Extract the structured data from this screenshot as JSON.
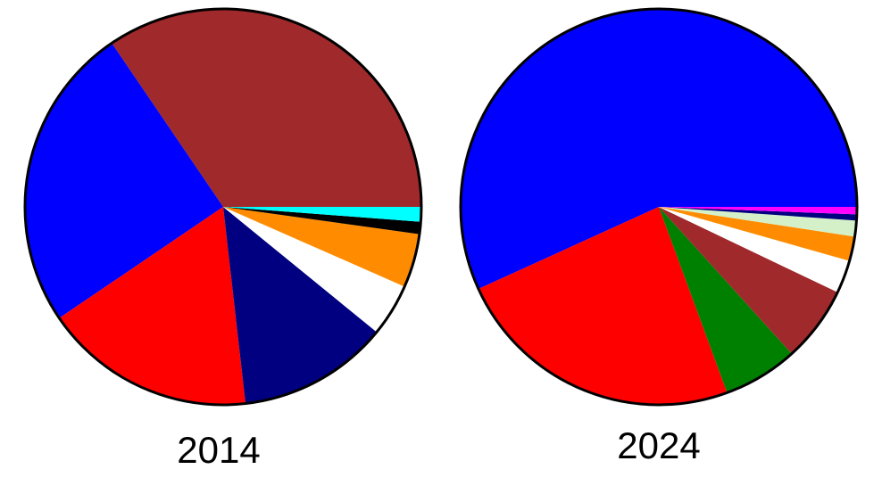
{
  "chart_data": [
    {
      "type": "pie",
      "title": "2014",
      "values": [
        34.5,
        25,
        17.3,
        12.3,
        4.3,
        4.4,
        1,
        1.2
      ],
      "colors": [
        "#a0292b",
        "#0000ff",
        "#ff0000",
        "#000080",
        "#ffffff",
        "#ff8c00",
        "#000000",
        "#00ffff"
      ]
    },
    {
      "type": "pie",
      "title": "2024",
      "values": [
        56.8,
        23.8,
        6.1,
        6.2,
        2.7,
        2,
        1.3,
        0.5,
        0.6
      ],
      "colors": [
        "#0000ff",
        "#ff0000",
        "#008000",
        "#a0292b",
        "#ffffff",
        "#ff8c00",
        "#d4f0c8",
        "#000080",
        "#ff00ff"
      ]
    }
  ]
}
